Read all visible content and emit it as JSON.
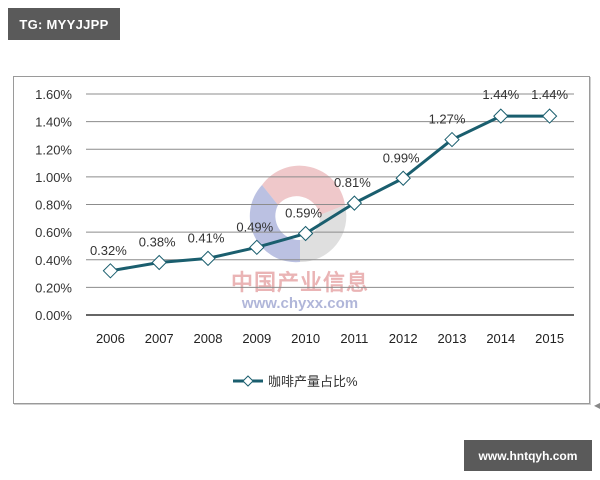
{
  "tag_badge": {
    "label": "TG: MYYJJPP"
  },
  "site_badge": {
    "label": "www.hntqyh.com"
  },
  "watermark": {
    "cn_text": "中国产业信息",
    "url_text": "www.chyxx.com"
  },
  "colors": {
    "series_line": "#1a5e6e",
    "marker_fill": "#ffffff",
    "grid": "#8c8c8c",
    "axis": "#333333",
    "badge_bg": "#5a5a5a"
  },
  "chart_data": {
    "type": "line",
    "title": "",
    "xlabel": "",
    "ylabel": "",
    "categories": [
      "2006",
      "2007",
      "2008",
      "2009",
      "2010",
      "2011",
      "2012",
      "2013",
      "2014",
      "2015"
    ],
    "series": [
      {
        "name": "咖啡产量占比%",
        "values": [
          0.32,
          0.38,
          0.41,
          0.49,
          0.59,
          0.81,
          0.99,
          1.27,
          1.44,
          1.44
        ],
        "labels": [
          "0.32%",
          "0.38%",
          "0.41%",
          "0.49%",
          "0.59%",
          "0.81%",
          "0.99%",
          "1.27%",
          "1.44%",
          "1.44%"
        ],
        "marker": "diamond"
      }
    ],
    "yticks": [
      "0.00%",
      "0.20%",
      "0.40%",
      "0.60%",
      "0.80%",
      "1.00%",
      "1.20%",
      "1.40%",
      "1.60%"
    ],
    "ylim": [
      0,
      1.6
    ],
    "grid": true,
    "legend_position": "bottom",
    "legend": [
      {
        "label": "咖啡产量占比%"
      }
    ]
  }
}
